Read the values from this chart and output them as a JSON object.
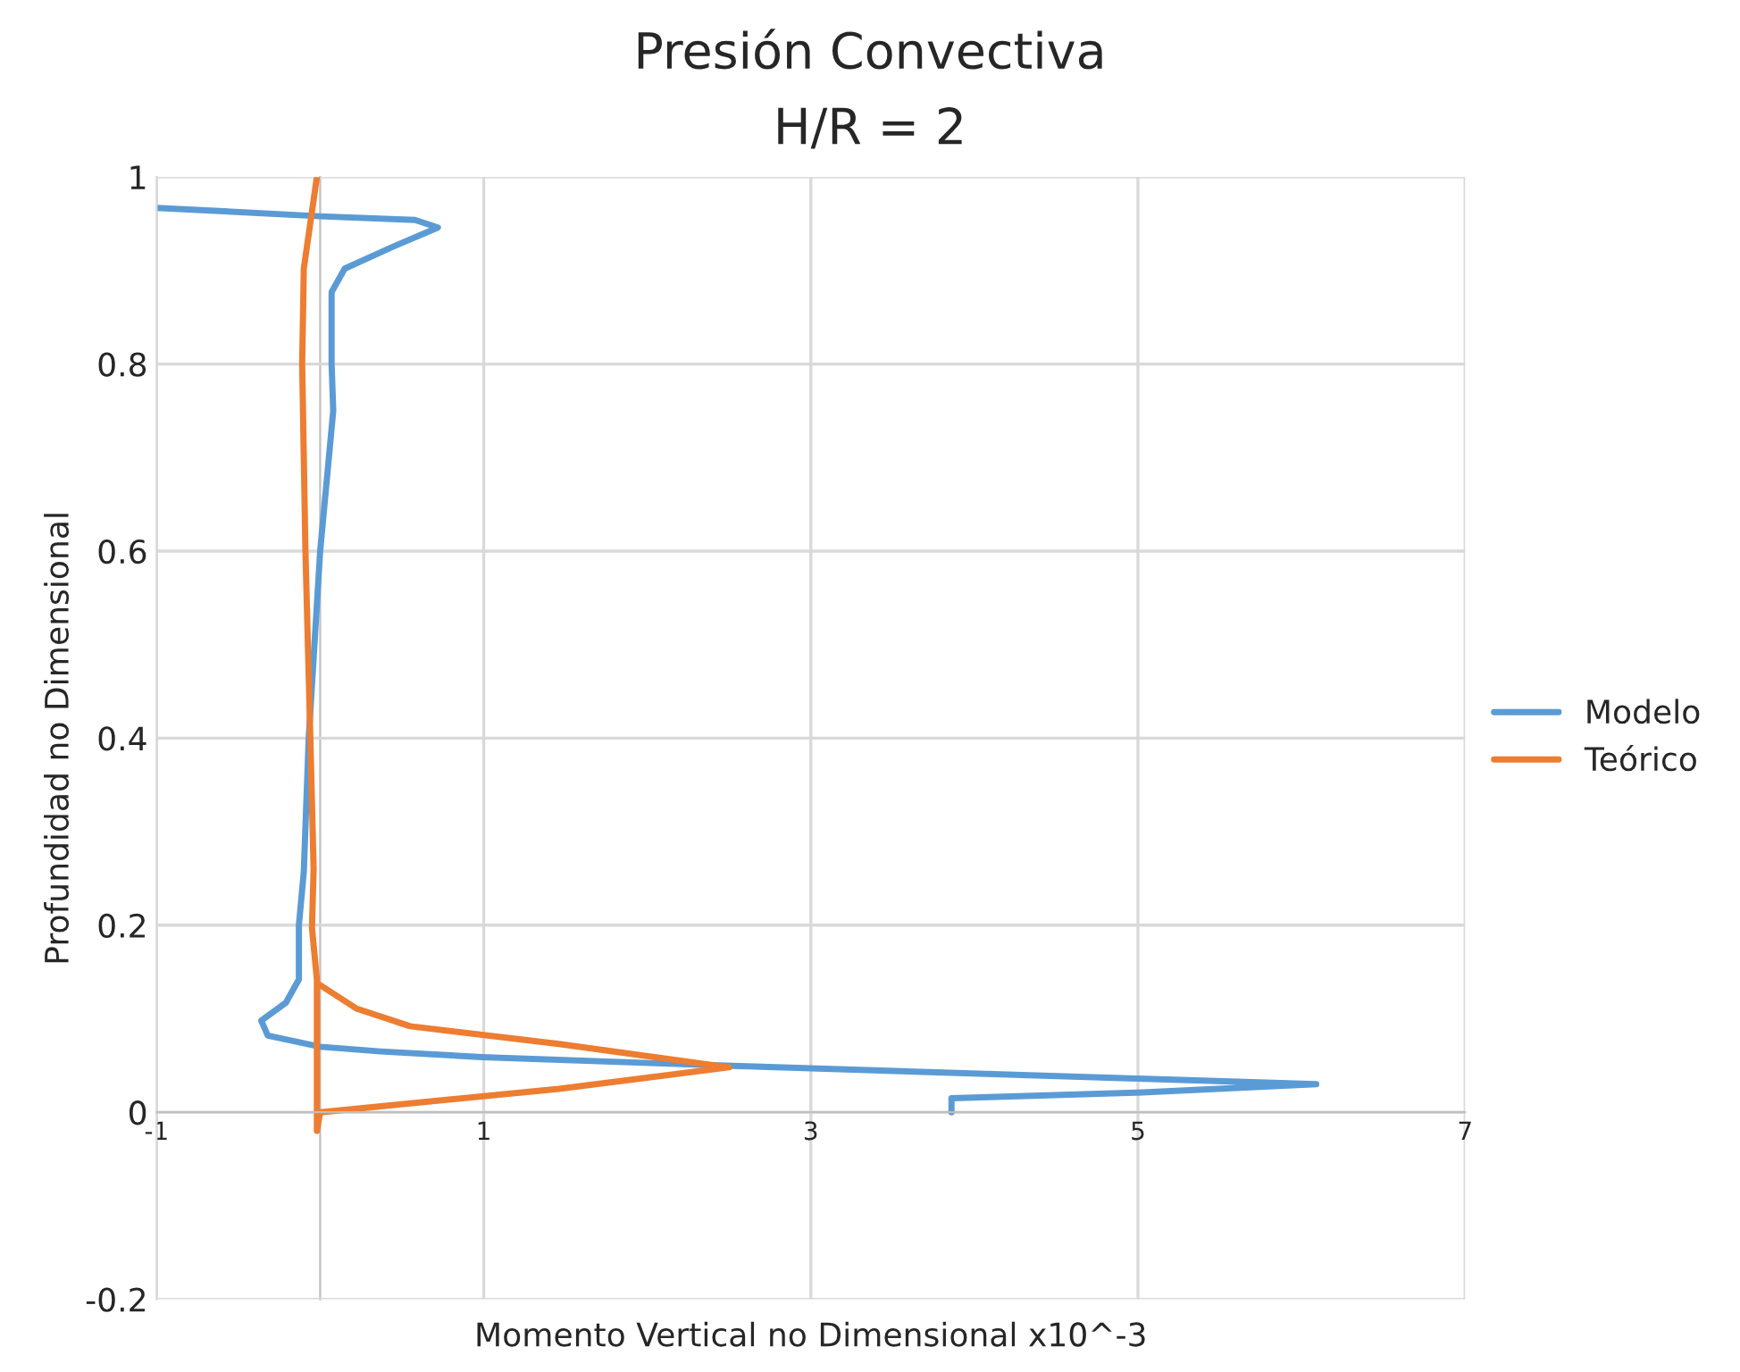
{
  "chart_data": {
    "type": "line",
    "title": "Presión Convectiva",
    "subtitle": "H/R = 2",
    "xlabel": "Momento Vertical no Dimensional x10^-3",
    "ylabel": "Profundidad no Dimensional",
    "xlim": [
      -1,
      7
    ],
    "xticks": [
      -1,
      1,
      3,
      5,
      7
    ],
    "ylim": [
      -0.2,
      1
    ],
    "yticks": [
      -0.2,
      0,
      0.2,
      0.4,
      0.6,
      0.8,
      1
    ],
    "grid": true,
    "legend": "right",
    "marker": "none",
    "line_style": "solid",
    "series": [
      {
        "name": "Modelo",
        "color": "#5b9bd5",
        "x": [
          -1,
          0,
          0.58,
          0.72,
          0.44,
          0.15,
          0.07,
          0.07,
          0.08,
          0,
          -0.07,
          -0.1,
          -0.13,
          -0.13,
          -0.21,
          -0.36,
          -0.32,
          0,
          0.37,
          0.99,
          2.44,
          5,
          6.09,
          5,
          3.86,
          3.86
        ],
        "values": [
          0.967,
          0.958,
          0.954,
          0.946,
          0.925,
          0.902,
          0.877,
          0.8,
          0.75,
          0.6,
          0.4,
          0.257,
          0.2,
          0.142,
          0.117,
          0.098,
          0.082,
          0.07,
          0.065,
          0.059,
          0.05,
          0.036,
          0.03,
          0.021,
          0.015,
          0
        ]
      },
      {
        "name": "Teórico",
        "color": "#ed7d31",
        "x": [
          -0.02,
          -0.1,
          -0.11,
          -0.09,
          -0.06,
          -0.04,
          -0.05,
          -0.02,
          -0.02,
          0,
          1.46,
          2.5,
          1.46,
          0.55,
          0.22,
          0
        ],
        "values": [
          1.0,
          0.902,
          0.8,
          0.6,
          0.4,
          0.26,
          0.197,
          0.142,
          -0.02,
          0,
          0.025,
          0.048,
          0.073,
          0.092,
          0.111,
          0.136
        ]
      }
    ]
  }
}
